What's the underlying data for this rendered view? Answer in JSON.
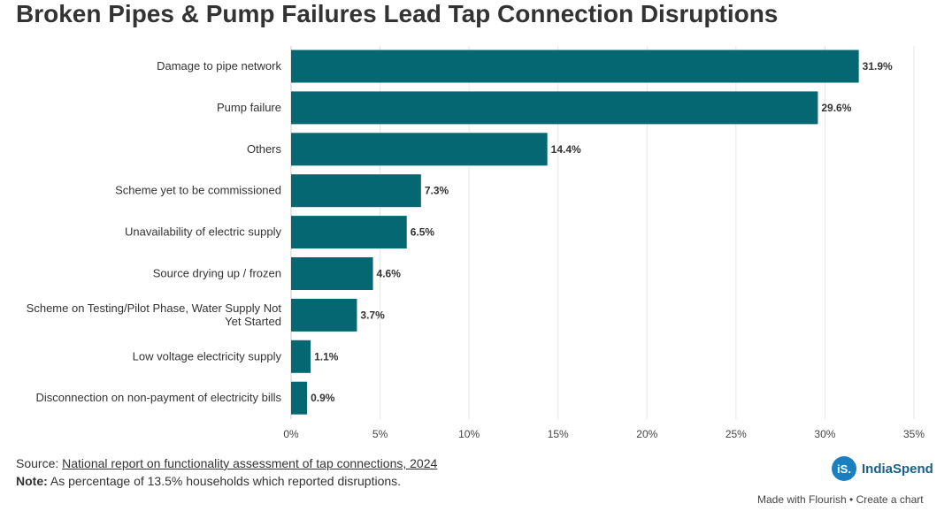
{
  "title": "Broken Pipes & Pump Failures Lead Tap Connection Disruptions",
  "chart_data": {
    "type": "bar",
    "orientation": "horizontal",
    "categories": [
      "Damage to pipe network",
      "Pump failure",
      "Others",
      "Scheme yet to be commissioned",
      "Unavailability of electric supply",
      "Source drying up / frozen",
      "Scheme on Testing/Pilot Phase, Water Supply Not Yet Started",
      "Low voltage electricity supply",
      "Disconnection on non-payment of electricity bills"
    ],
    "values": [
      31.9,
      29.6,
      14.4,
      7.3,
      6.5,
      4.6,
      3.7,
      1.1,
      0.9
    ],
    "value_labels": [
      "31.9%",
      "29.6%",
      "14.4%",
      "7.3%",
      "6.5%",
      "4.6%",
      "3.7%",
      "1.1%",
      "0.9%"
    ],
    "xlim": [
      0,
      35
    ],
    "x_ticks": [
      0,
      5,
      10,
      15,
      20,
      25,
      30,
      35
    ],
    "x_tick_labels": [
      "0%",
      "5%",
      "10%",
      "15%",
      "20%",
      "25%",
      "30%",
      "35%"
    ],
    "grid": "vertical",
    "bar_color": "#046771"
  },
  "footer": {
    "source_prefix": "Source: ",
    "source_link": "National report on functionality assessment of tap connections, 2024",
    "note_label": "Note:",
    "note_text": " As percentage of 13.5% households which reported disruptions."
  },
  "brand": {
    "badge": "iS.",
    "name": "IndiaSpend"
  },
  "made_with": "Made with Flourish • Create a chart"
}
